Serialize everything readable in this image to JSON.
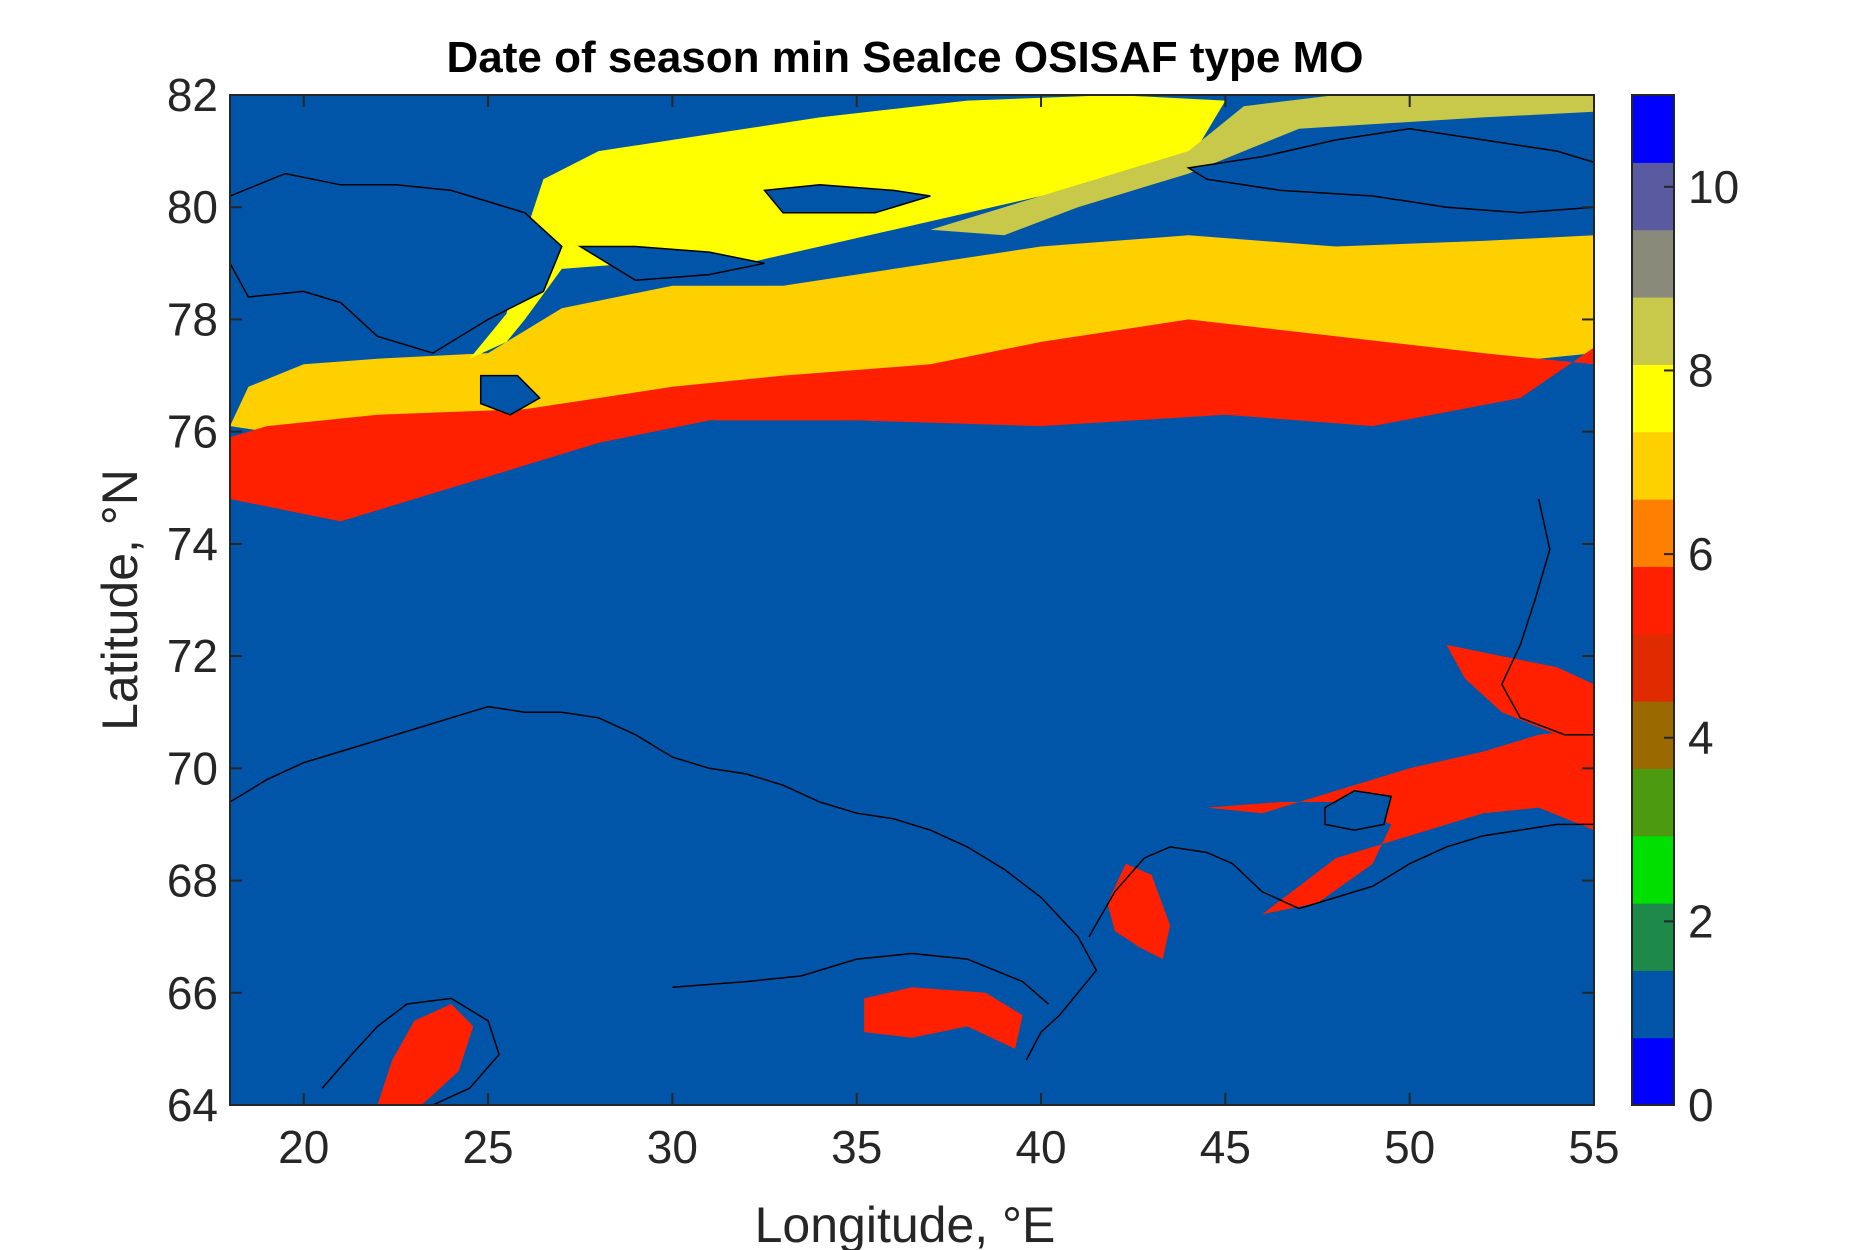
{
  "chart_data": {
    "type": "heatmap",
    "title": "Date of season min SeaIce OSISAF type MO",
    "xlabel": "Longitude, °E",
    "ylabel": "Latitude, °N",
    "xlim": [
      18,
      55
    ],
    "ylim": [
      64,
      82
    ],
    "x_ticks": [
      20,
      25,
      30,
      35,
      40,
      45,
      50,
      55
    ],
    "y_ticks": [
      64,
      66,
      68,
      70,
      72,
      74,
      76,
      78,
      80,
      82
    ],
    "colorbar": {
      "range": [
        0,
        11
      ],
      "ticks": [
        0,
        2,
        4,
        6,
        8,
        10
      ],
      "colormap": [
        "#0000ff",
        "#0055a8",
        "#1e8a4a",
        "#00e000",
        "#4c9a10",
        "#9a6a00",
        "#e02a00",
        "#ff2000",
        "#ff8000",
        "#ffd000",
        "#ffff00",
        "#c8c84a",
        "#8a8a7a",
        "#5a5aa0",
        "#0000ff"
      ]
    },
    "background_value": 1,
    "regions": [
      {
        "name": "svalbard-south-band",
        "value": 6.8,
        "outline": [
          [
            18,
            76.1
          ],
          [
            18.5,
            76.8
          ],
          [
            20,
            77.2
          ],
          [
            22,
            77.3
          ],
          [
            25,
            77.4
          ],
          [
            27,
            78.2
          ],
          [
            30,
            78.6
          ],
          [
            33,
            78.6
          ],
          [
            36,
            78.9
          ],
          [
            40,
            79.3
          ],
          [
            44,
            79.5
          ],
          [
            48,
            79.3
          ],
          [
            52,
            79.4
          ],
          [
            55,
            79.5
          ],
          [
            55,
            77.4
          ],
          [
            52,
            77.2
          ],
          [
            48,
            76.8
          ],
          [
            44,
            76.6
          ],
          [
            40,
            76.4
          ],
          [
            36,
            76.3
          ],
          [
            32,
            76.4
          ],
          [
            28,
            76.0
          ],
          [
            25,
            75.9
          ],
          [
            22,
            75.5
          ],
          [
            20,
            75.9
          ],
          [
            18,
            76.1
          ]
        ]
      },
      {
        "name": "south-red-edge",
        "value": 5.7,
        "outline": [
          [
            18,
            74.8
          ],
          [
            19.5,
            74.6
          ],
          [
            21,
            74.4
          ],
          [
            23,
            74.8
          ],
          [
            25,
            75.2
          ],
          [
            28,
            75.8
          ],
          [
            31,
            76.2
          ],
          [
            35,
            76.2
          ],
          [
            40,
            76.1
          ],
          [
            45,
            76.3
          ],
          [
            49,
            76.1
          ],
          [
            53,
            76.6
          ],
          [
            55,
            77.5
          ],
          [
            55,
            77.2
          ],
          [
            52,
            77.4
          ],
          [
            48,
            77.7
          ],
          [
            44,
            78.0
          ],
          [
            40,
            77.6
          ],
          [
            37,
            77.2
          ],
          [
            33,
            77.0
          ],
          [
            30,
            76.8
          ],
          [
            26,
            76.4
          ],
          [
            22,
            76.3
          ],
          [
            19,
            76.1
          ],
          [
            18,
            75.9
          ]
        ]
      },
      {
        "name": "north-yellow",
        "value": 7.9,
        "outline": [
          [
            26.5,
            80.5
          ],
          [
            28,
            81.0
          ],
          [
            30,
            81.2
          ],
          [
            34,
            81.6
          ],
          [
            38,
            81.9
          ],
          [
            42,
            82.0
          ],
          [
            45,
            81.9
          ],
          [
            44,
            80.8
          ],
          [
            40,
            80.2
          ],
          [
            36,
            79.6
          ],
          [
            32,
            79.0
          ],
          [
            29,
            79.0
          ],
          [
            27,
            78.9
          ],
          [
            26,
            78.0
          ],
          [
            25.5,
            77.6
          ],
          [
            24.5,
            77.3
          ],
          [
            25.5,
            78.1
          ],
          [
            26,
            79.5
          ],
          [
            26.5,
            80.5
          ]
        ]
      },
      {
        "name": "north-olive",
        "value": 9.0,
        "outline": [
          [
            37,
            79.6
          ],
          [
            40,
            80.2
          ],
          [
            44,
            81.0
          ],
          [
            45.5,
            81.8
          ],
          [
            48,
            82.0
          ],
          [
            55,
            82.0
          ],
          [
            55,
            81.7
          ],
          [
            52,
            81.6
          ],
          [
            47,
            81.4
          ],
          [
            44,
            80.6
          ],
          [
            41,
            80.0
          ],
          [
            39,
            79.5
          ],
          [
            37,
            79.6
          ]
        ]
      },
      {
        "name": "pechora-red",
        "value": 5.8,
        "outline": [
          [
            44.5,
            69.3
          ],
          [
            46,
            69.2
          ],
          [
            48,
            69.6
          ],
          [
            50,
            70.0
          ],
          [
            52,
            70.3
          ],
          [
            53.5,
            70.6
          ],
          [
            55,
            70.7
          ],
          [
            55,
            68.9
          ],
          [
            53.5,
            69.3
          ],
          [
            52,
            69.2
          ],
          [
            50,
            68.8
          ],
          [
            48,
            68.4
          ],
          [
            47,
            67.9
          ],
          [
            46,
            67.4
          ],
          [
            47.5,
            67.6
          ],
          [
            49,
            68.3
          ],
          [
            49.5,
            69.0
          ],
          [
            48,
            69.4
          ],
          [
            46.5,
            69.4
          ],
          [
            44.5,
            69.3
          ]
        ]
      },
      {
        "name": "novaya-coast-red",
        "value": 5.8,
        "outline": [
          [
            51,
            72.2
          ],
          [
            51.5,
            71.6
          ],
          [
            52.5,
            71.0
          ],
          [
            54,
            70.6
          ],
          [
            55,
            70.5
          ],
          [
            55,
            71.5
          ],
          [
            54,
            71.8
          ],
          [
            52.5,
            72.0
          ],
          [
            51,
            72.2
          ]
        ]
      },
      {
        "name": "white-sea-east",
        "value": 5.8,
        "outline": [
          [
            41.8,
            67.6
          ],
          [
            42.3,
            68.3
          ],
          [
            43,
            68.1
          ],
          [
            43.5,
            67.2
          ],
          [
            43.3,
            66.6
          ],
          [
            42.7,
            66.8
          ],
          [
            42.0,
            67.1
          ],
          [
            41.8,
            67.6
          ]
        ]
      },
      {
        "name": "white-sea-south",
        "value": 5.8,
        "outline": [
          [
            35.2,
            65.9
          ],
          [
            36.5,
            66.1
          ],
          [
            38.5,
            66.0
          ],
          [
            39.5,
            65.6
          ],
          [
            39.3,
            65.0
          ],
          [
            38,
            65.4
          ],
          [
            36.5,
            65.2
          ],
          [
            35.2,
            65.3
          ],
          [
            35.2,
            65.9
          ]
        ]
      },
      {
        "name": "gulf-bothnia",
        "value": 5.8,
        "outline": [
          [
            22,
            64.0
          ],
          [
            22.4,
            64.8
          ],
          [
            23,
            65.5
          ],
          [
            24,
            65.8
          ],
          [
            24.6,
            65.4
          ],
          [
            24.2,
            64.6
          ],
          [
            23.2,
            64.0
          ],
          [
            22,
            64.0
          ]
        ]
      }
    ],
    "islands": [
      {
        "name": "svalbard",
        "outline": [
          [
            18,
            80.2
          ],
          [
            19.5,
            80.6
          ],
          [
            21,
            80.4
          ],
          [
            22.5,
            80.4
          ],
          [
            24,
            80.3
          ],
          [
            26,
            79.9
          ],
          [
            27,
            79.3
          ],
          [
            26.5,
            78.5
          ],
          [
            25,
            78.0
          ],
          [
            23.5,
            77.4
          ],
          [
            22,
            77.7
          ],
          [
            21,
            78.3
          ],
          [
            20,
            78.5
          ],
          [
            18.5,
            78.4
          ],
          [
            18,
            79.0
          ]
        ]
      },
      {
        "name": "kvitoya",
        "outline": [
          [
            32.5,
            80.3
          ],
          [
            34,
            80.4
          ],
          [
            36,
            80.3
          ],
          [
            37,
            80.2
          ],
          [
            35.5,
            79.9
          ],
          [
            33,
            79.9
          ],
          [
            32.5,
            80.3
          ]
        ]
      },
      {
        "name": "kong-karls",
        "outline": [
          [
            27.5,
            79.3
          ],
          [
            29,
            79.3
          ],
          [
            31,
            79.2
          ],
          [
            32.5,
            79.0
          ],
          [
            31,
            78.8
          ],
          [
            29,
            78.7
          ],
          [
            27.5,
            79.3
          ]
        ]
      },
      {
        "name": "hopen",
        "outline": [
          [
            24.8,
            77.0
          ],
          [
            25.8,
            77.0
          ],
          [
            26.4,
            76.6
          ],
          [
            25.6,
            76.3
          ],
          [
            24.8,
            76.5
          ],
          [
            24.8,
            77.0
          ]
        ]
      },
      {
        "name": "franz-josef",
        "outline": [
          [
            44,
            80.7
          ],
          [
            46,
            80.9
          ],
          [
            48,
            81.2
          ],
          [
            50,
            81.4
          ],
          [
            52,
            81.2
          ],
          [
            54,
            81.0
          ],
          [
            55,
            80.8
          ],
          [
            55,
            80.0
          ],
          [
            53,
            79.9
          ],
          [
            51,
            80.0
          ],
          [
            49,
            80.2
          ],
          [
            46.5,
            80.3
          ],
          [
            44.5,
            80.5
          ],
          [
            44,
            80.7
          ]
        ]
      },
      {
        "name": "kolguev",
        "outline": [
          [
            47.7,
            69.3
          ],
          [
            48.5,
            69.6
          ],
          [
            49.5,
            69.5
          ],
          [
            49.3,
            69.0
          ],
          [
            48.5,
            68.9
          ],
          [
            47.7,
            69.0
          ],
          [
            47.7,
            69.3
          ]
        ]
      }
    ],
    "coastlines": [
      [
        [
          18,
          69.4
        ],
        [
          19,
          69.8
        ],
        [
          20,
          70.1
        ],
        [
          21,
          70.3
        ],
        [
          22,
          70.5
        ],
        [
          23,
          70.7
        ],
        [
          24,
          70.9
        ],
        [
          25,
          71.1
        ],
        [
          26,
          71.0
        ],
        [
          27,
          71.0
        ],
        [
          28,
          70.9
        ],
        [
          29,
          70.6
        ],
        [
          30,
          70.2
        ],
        [
          31,
          70.0
        ],
        [
          32,
          69.9
        ],
        [
          33,
          69.7
        ],
        [
          34,
          69.4
        ],
        [
          35,
          69.2
        ],
        [
          36,
          69.1
        ],
        [
          37,
          68.9
        ],
        [
          38,
          68.6
        ],
        [
          39,
          68.2
        ],
        [
          40,
          67.7
        ],
        [
          41,
          67.0
        ],
        [
          41.5,
          66.4
        ],
        [
          41,
          66.0
        ],
        [
          40.5,
          65.6
        ],
        [
          40,
          65.3
        ],
        [
          39.6,
          64.8
        ]
      ],
      [
        [
          30,
          66.1
        ],
        [
          32,
          66.2
        ],
        [
          33.5,
          66.3
        ],
        [
          35,
          66.6
        ],
        [
          36.5,
          66.7
        ],
        [
          38,
          66.6
        ],
        [
          39.5,
          66.2
        ],
        [
          40.2,
          65.8
        ]
      ],
      [
        [
          41.3,
          67.0
        ],
        [
          42,
          67.8
        ],
        [
          42.8,
          68.4
        ],
        [
          43.5,
          68.6
        ],
        [
          44.5,
          68.5
        ],
        [
          45.2,
          68.3
        ],
        [
          46,
          67.8
        ],
        [
          47,
          67.5
        ],
        [
          48,
          67.7
        ],
        [
          49,
          67.9
        ],
        [
          50,
          68.3
        ],
        [
          51,
          68.6
        ],
        [
          52,
          68.8
        ],
        [
          53,
          68.9
        ],
        [
          54,
          69.0
        ],
        [
          55,
          69.0
        ]
      ],
      [
        [
          53.5,
          74.8
        ],
        [
          53.8,
          73.9
        ],
        [
          53.4,
          73.0
        ],
        [
          53.0,
          72.2
        ],
        [
          52.5,
          71.5
        ],
        [
          53.0,
          70.9
        ],
        [
          54.2,
          70.6
        ],
        [
          55,
          70.6
        ]
      ],
      [
        [
          20.5,
          64.3
        ],
        [
          21.3,
          64.9
        ],
        [
          22,
          65.4
        ],
        [
          22.8,
          65.8
        ],
        [
          24,
          65.9
        ],
        [
          25,
          65.5
        ],
        [
          25.3,
          64.9
        ],
        [
          24.5,
          64.3
        ],
        [
          23.5,
          64.0
        ]
      ]
    ]
  }
}
